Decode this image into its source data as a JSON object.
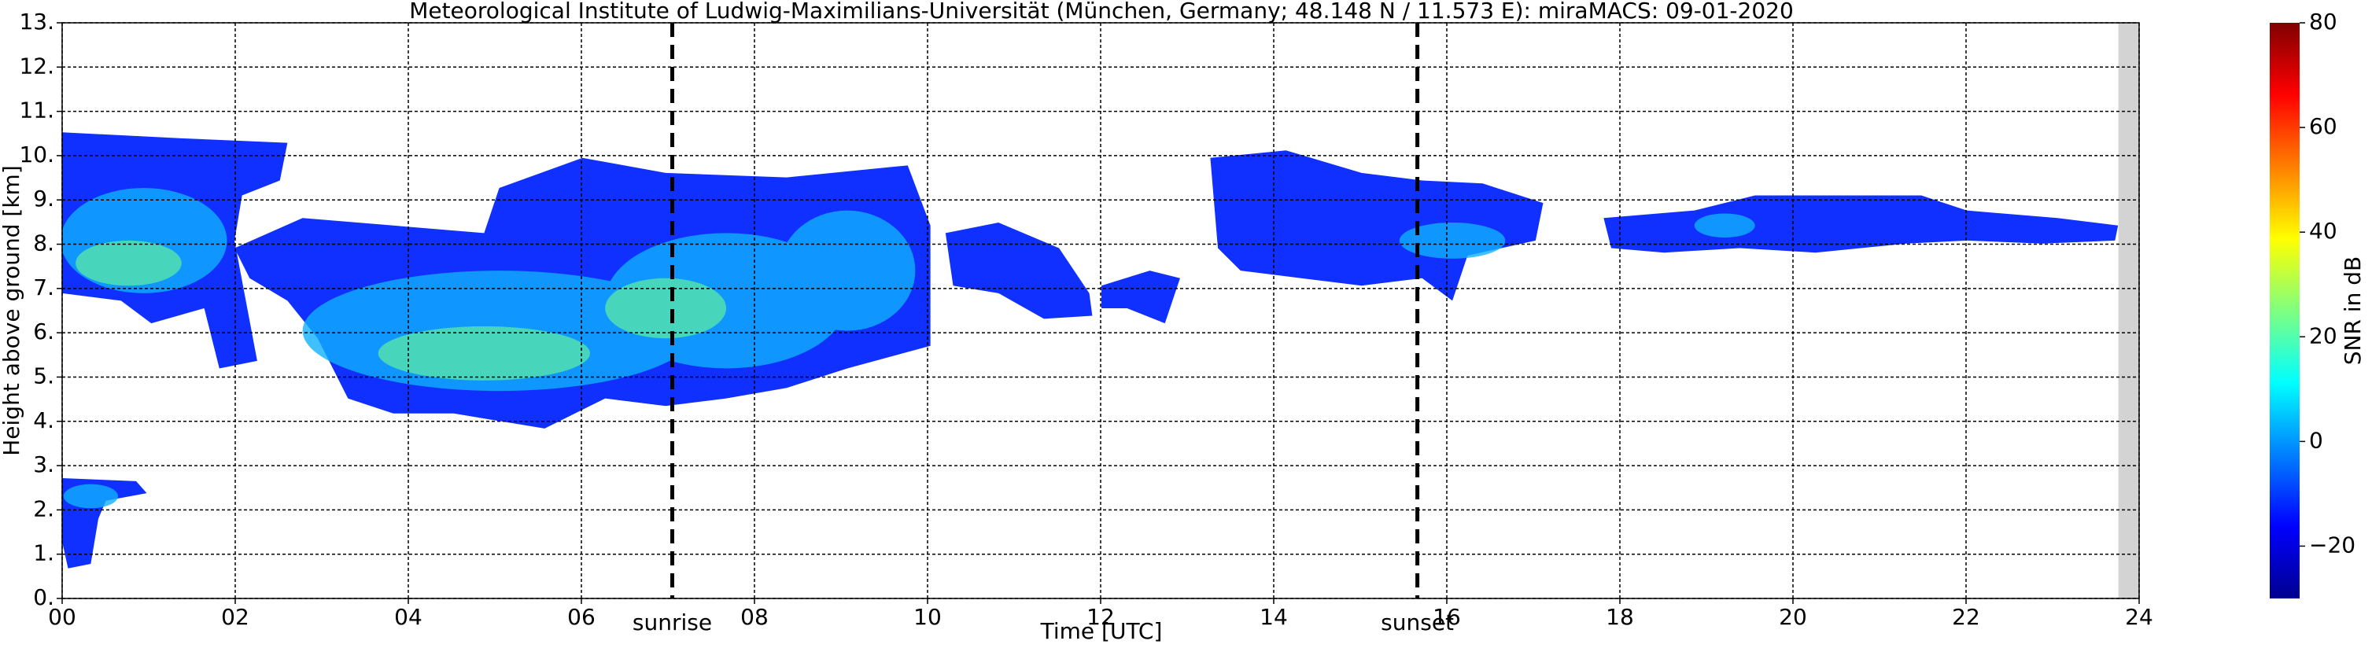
{
  "chart_data": {
    "type": "heatmap",
    "title": "Meteorological Institute of Ludwig-Maximilians-Universität (München, Germany; 48.148 N / 11.573 E):    miraMACS: 09-01-2020",
    "xlabel": "Time [UTC]",
    "ylabel": "Height above ground [km]",
    "xlim": [
      0,
      24
    ],
    "xticks": [
      {
        "value": 0,
        "label": "00"
      },
      {
        "value": 2,
        "label": "02"
      },
      {
        "value": 4,
        "label": "04"
      },
      {
        "value": 6,
        "label": "06"
      },
      {
        "value": 8,
        "label": "08"
      },
      10,
      12,
      14,
      16,
      18,
      20,
      22,
      24
    ],
    "ylim": [
      0,
      13
    ],
    "yticks": [
      {
        "value": 0,
        "label": "0."
      },
      {
        "value": 1,
        "label": "1."
      },
      {
        "value": 2,
        "label": "2."
      },
      {
        "value": 3,
        "label": "3."
      },
      {
        "value": 4,
        "label": "4."
      },
      {
        "value": 5,
        "label": "5."
      },
      {
        "value": 6,
        "label": "6."
      },
      {
        "value": 7,
        "label": "7."
      },
      {
        "value": 8,
        "label": "8."
      },
      {
        "value": 9,
        "label": "9."
      },
      {
        "value": 10,
        "label": "10."
      },
      {
        "value": 11,
        "label": "11."
      },
      {
        "value": 12,
        "label": "12."
      },
      {
        "value": 13,
        "label": "13."
      }
    ],
    "grid": true,
    "markers": [
      {
        "x": 7.05,
        "label": "sunrise"
      },
      {
        "x": 15.66,
        "label": "sunset"
      }
    ],
    "shaded_xrange": [
      23.76,
      24
    ],
    "colorbar": {
      "label": "SNR in dB",
      "colormap": "jet",
      "lim": [
        -30,
        80
      ],
      "ticks": [
        {
          "value": -20,
          "label": "−20"
        },
        0,
        20,
        40,
        60,
        80
      ]
    }
  }
}
